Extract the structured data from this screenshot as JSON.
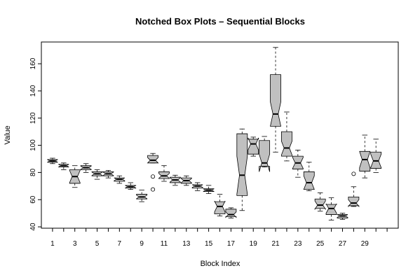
{
  "chart_data": {
    "type": "boxplot",
    "title": "Notched Box Plots – Sequential Blocks",
    "xlabel": "Block Index",
    "ylabel": "Value",
    "xlim": [
      0,
      32
    ],
    "ylim": [
      39,
      176
    ],
    "y_ticks": [
      40,
      60,
      80,
      100,
      120,
      140,
      160
    ],
    "x_ticks": [
      1,
      2,
      3,
      4,
      5,
      6,
      7,
      8,
      9,
      10,
      11,
      12,
      13,
      14,
      15,
      16,
      17,
      18,
      19,
      20,
      21,
      22,
      23,
      24,
      25,
      26,
      27,
      28,
      29,
      30,
      31
    ],
    "x_tick_labels": [
      "1",
      "",
      "3",
      "",
      "5",
      "",
      "7",
      "",
      "9",
      "",
      "11",
      "",
      "13",
      "",
      "15",
      "",
      "17",
      "",
      "19",
      "",
      "21",
      "",
      "23",
      "",
      "25",
      "",
      "27",
      "",
      "29",
      "",
      ""
    ],
    "grid": false,
    "box_fill": "#c0c0c0",
    "boxes": [
      {
        "x": 1,
        "lw": 86.5,
        "q1": 87.5,
        "med": 88.5,
        "q3": 89.5,
        "uw": 90.5,
        "notch": 1.0,
        "outliers": []
      },
      {
        "x": 2,
        "lw": 82.0,
        "q1": 84.0,
        "med": 85.0,
        "q3": 86.0,
        "uw": 87.0,
        "notch": 1.0,
        "outliers": []
      },
      {
        "x": 3,
        "lw": 69.0,
        "q1": 72.0,
        "med": 77.0,
        "q3": 82.0,
        "uw": 85.0,
        "notch": 4.5,
        "outliers": []
      },
      {
        "x": 4,
        "lw": 80.0,
        "q1": 82.0,
        "med": 83.5,
        "q3": 85.0,
        "uw": 86.5,
        "notch": 1.2,
        "outliers": []
      },
      {
        "x": 5,
        "lw": 75.0,
        "q1": 77.5,
        "med": 79.0,
        "q3": 80.5,
        "uw": 82.0,
        "notch": 1.3,
        "outliers": []
      },
      {
        "x": 6,
        "lw": 76.0,
        "q1": 77.5,
        "med": 79.0,
        "q3": 80.5,
        "uw": 81.5,
        "notch": 1.3,
        "outliers": []
      },
      {
        "x": 7,
        "lw": 72.0,
        "q1": 73.5,
        "med": 75.0,
        "q3": 76.0,
        "uw": 77.5,
        "notch": 1.0,
        "outliers": []
      },
      {
        "x": 8,
        "lw": 67.5,
        "q1": 68.5,
        "med": 69.5,
        "q3": 70.5,
        "uw": 72.5,
        "notch": 0.9,
        "outliers": []
      },
      {
        "x": 9,
        "lw": 58.5,
        "q1": 60.5,
        "med": 62.0,
        "q3": 64.0,
        "uw": 67.0,
        "notch": 1.3,
        "outliers": []
      },
      {
        "x": 10,
        "lw": 87.0,
        "q1": 87.0,
        "med": 89.0,
        "q3": 92.5,
        "uw": 94.0,
        "notch": 2.0,
        "outliers": [
          77.0,
          67.5
        ]
      },
      {
        "x": 11,
        "lw": 73.5,
        "q1": 75.5,
        "med": 77.5,
        "q3": 80.5,
        "uw": 85.0,
        "notch": 1.8,
        "outliers": []
      },
      {
        "x": 12,
        "lw": 70.5,
        "q1": 72.5,
        "med": 74.5,
        "q3": 76.5,
        "uw": 78.0,
        "notch": 1.6,
        "outliers": []
      },
      {
        "x": 13,
        "lw": 70.5,
        "q1": 72.0,
        "med": 74.0,
        "q3": 76.0,
        "uw": 77.5,
        "notch": 1.6,
        "outliers": []
      },
      {
        "x": 14,
        "lw": 66.5,
        "q1": 68.5,
        "med": 70.0,
        "q3": 71.0,
        "uw": 72.5,
        "notch": 1.0,
        "outliers": []
      },
      {
        "x": 15,
        "lw": 64.5,
        "q1": 66.0,
        "med": 67.0,
        "q3": 68.0,
        "uw": 70.5,
        "notch": 0.9,
        "outliers": []
      },
      {
        "x": 16,
        "lw": 48.0,
        "q1": 49.5,
        "med": 55.0,
        "q3": 58.5,
        "uw": 64.0,
        "notch": 4.0,
        "outliers": []
      },
      {
        "x": 17,
        "lw": 46.5,
        "q1": 47.5,
        "med": 49.0,
        "q3": 53.0,
        "uw": 54.0,
        "notch": 2.0,
        "outliers": []
      },
      {
        "x": 18,
        "lw": 52.0,
        "q1": 63.0,
        "med": 78.0,
        "q3": 108.5,
        "uw": 112.0,
        "notch": 14.0,
        "outliers": []
      },
      {
        "x": 19,
        "lw": 92.0,
        "q1": 93.5,
        "med": 101.0,
        "q3": 104.5,
        "uw": 106.0,
        "notch": 4.5,
        "outliers": []
      },
      {
        "x": 20,
        "lw": 84.0,
        "q1": 84.5,
        "med": 87.0,
        "q3": 103.5,
        "uw": 106.5,
        "notch": 6.5,
        "outliers": []
      },
      {
        "x": 21,
        "lw": 95.0,
        "q1": 114.0,
        "med": 123.0,
        "q3": 152.0,
        "uw": 172.0,
        "notch": 9.0,
        "outliers": []
      },
      {
        "x": 22,
        "lw": 88.5,
        "q1": 92.0,
        "med": 98.0,
        "q3": 110.0,
        "uw": 124.5,
        "notch": 5.0,
        "outliers": []
      },
      {
        "x": 23,
        "lw": 76.5,
        "q1": 82.5,
        "med": 87.0,
        "q3": 92.0,
        "uw": 96.5,
        "notch": 4.0,
        "outliers": []
      },
      {
        "x": 24,
        "lw": 66.5,
        "q1": 67.5,
        "med": 72.5,
        "q3": 80.5,
        "uw": 87.5,
        "notch": 5.0,
        "outliers": []
      },
      {
        "x": 25,
        "lw": 51.5,
        "q1": 53.5,
        "med": 56.0,
        "q3": 60.5,
        "uw": 65.0,
        "notch": 3.0,
        "outliers": []
      },
      {
        "x": 26,
        "lw": 45.0,
        "q1": 49.0,
        "med": 53.5,
        "q3": 56.5,
        "uw": 61.5,
        "notch": 3.5,
        "outliers": []
      },
      {
        "x": 27,
        "lw": 45.5,
        "q1": 46.5,
        "med": 48.0,
        "q3": 49.0,
        "uw": 50.0,
        "notch": 1.0,
        "outliers": []
      },
      {
        "x": 28,
        "lw": 55.0,
        "q1": 55.5,
        "med": 57.5,
        "q3": 62.0,
        "uw": 69.5,
        "notch": 2.5,
        "outliers": [
          79.0
        ]
      },
      {
        "x": 29,
        "lw": 76.0,
        "q1": 81.0,
        "med": 89.5,
        "q3": 95.5,
        "uw": 107.5,
        "notch": 6.0,
        "outliers": []
      },
      {
        "x": 30,
        "lw": 80.0,
        "q1": 83.0,
        "med": 88.5,
        "q3": 95.0,
        "uw": 104.5,
        "notch": 5.0,
        "outliers": []
      }
    ]
  }
}
